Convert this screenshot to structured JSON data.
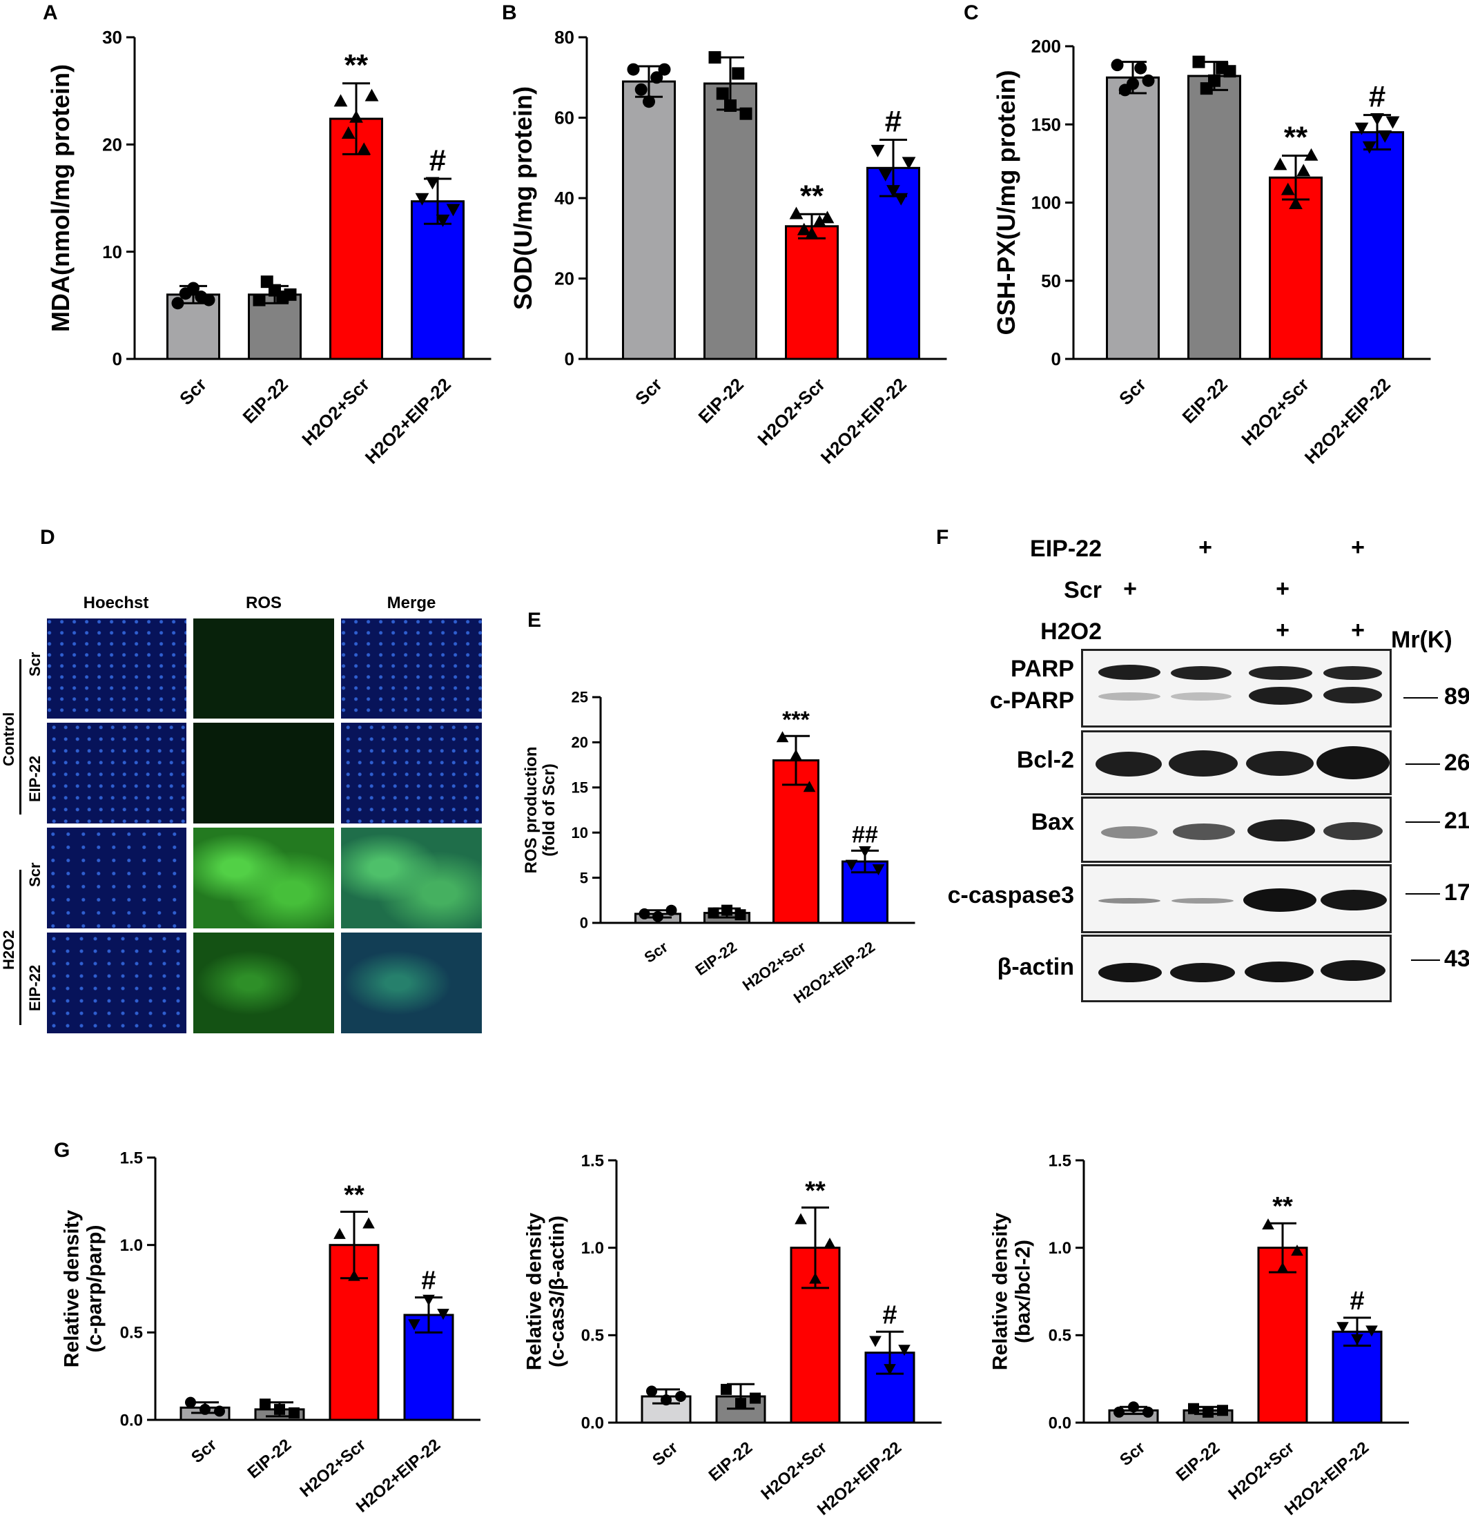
{
  "panels": {
    "A": "A",
    "B": "B",
    "C": "C",
    "D": "D",
    "E": "E",
    "F": "F",
    "G": "G"
  },
  "colors": {
    "scr": "#a6a6a8",
    "eip": "#828282",
    "h2o2_scr": "#ff0000",
    "h2o2_eip": "#0000ff",
    "scr_light_G": "#d6d6d8"
  },
  "chart_data": [
    {
      "id": "A",
      "type": "bar",
      "categories": [
        "Scr",
        "EIP-22",
        "H2O2+Scr",
        "H2O2+EIP-22"
      ],
      "values": [
        6.0,
        6.0,
        22.4,
        14.7
      ],
      "errors": [
        0.8,
        0.8,
        3.3,
        2.1
      ],
      "points": [
        [
          5.2,
          6.1,
          6.6,
          5.8,
          5.5
        ],
        [
          5.5,
          7.2,
          6.4,
          5.8,
          6.0
        ],
        [
          24.0,
          21.0,
          22.5,
          19.5,
          24.5
        ],
        [
          15.0,
          16.5,
          13.0,
          14.0
        ]
      ],
      "markers": [
        "circle",
        "square",
        "triangle-up",
        "triangle-down"
      ],
      "significance": [
        "",
        "",
        "**",
        "#"
      ],
      "ylabel": "MDA(nmol/mg protein)",
      "ylim": [
        0,
        30
      ],
      "yticks": [
        0,
        10,
        20,
        30
      ]
    },
    {
      "id": "B",
      "type": "bar",
      "categories": [
        "Scr",
        "EIP-22",
        "H2O2+Scr",
        "H2O2+EIP-22"
      ],
      "values": [
        69.0,
        68.5,
        33.0,
        47.5
      ],
      "errors": [
        3.8,
        6.5,
        3.0,
        7.0
      ],
      "points": [
        [
          72,
          67,
          64,
          70,
          72
        ],
        [
          75,
          66,
          63,
          71,
          61
        ],
        [
          36,
          32,
          31,
          34,
          35
        ],
        [
          52,
          46,
          42,
          40,
          49
        ]
      ],
      "markers": [
        "circle",
        "square",
        "triangle-up",
        "triangle-down"
      ],
      "significance": [
        "",
        "",
        "**",
        "#"
      ],
      "ylabel": "SOD(U/mg protein)",
      "ylim": [
        0,
        80
      ],
      "yticks": [
        0,
        20,
        40,
        60,
        80
      ]
    },
    {
      "id": "C",
      "type": "bar",
      "categories": [
        "Scr",
        "EIP-22",
        "H2O2+Scr",
        "H2O2+EIP-22"
      ],
      "values": [
        180,
        181,
        116,
        145
      ],
      "errors": [
        10,
        9,
        14,
        11
      ],
      "points": [
        [
          188,
          172,
          176,
          186,
          178
        ],
        [
          190,
          173,
          178,
          186,
          184
        ],
        [
          124,
          108,
          99,
          120,
          130
        ],
        [
          148,
          136,
          154,
          143,
          152
        ]
      ],
      "markers": [
        "circle",
        "square",
        "triangle-up",
        "triangle-down"
      ],
      "significance": [
        "",
        "",
        "**",
        "#"
      ],
      "ylabel": "GSH-PX(U/mg protein)",
      "ylim": [
        0,
        200
      ],
      "yticks": [
        0,
        50,
        100,
        150,
        200
      ]
    },
    {
      "id": "E",
      "type": "bar",
      "categories": [
        "Scr",
        "EIP-22",
        "H2O2+Scr",
        "H2O2+EIP-22"
      ],
      "values": [
        1.0,
        1.1,
        18.0,
        6.8
      ],
      "errors": [
        0.4,
        0.5,
        2.7,
        1.2
      ],
      "points": [
        [
          1.0,
          0.7,
          1.4
        ],
        [
          1.1,
          1.4,
          0.9
        ],
        [
          20.5,
          18.5,
          15.0
        ],
        [
          6.5,
          8.0,
          6.0
        ]
      ],
      "markers": [
        "circle",
        "square",
        "triangle-up",
        "triangle-down"
      ],
      "significance": [
        "",
        "",
        "***",
        "##"
      ],
      "ylabel": "ROS production\n(fold of Scr)",
      "ylim": [
        0,
        25
      ],
      "yticks": [
        0,
        5,
        10,
        15,
        20,
        25
      ]
    },
    {
      "id": "G1",
      "type": "bar",
      "categories": [
        "Scr",
        "EIP-22",
        "H2O2+Scr",
        "H2O2+EIP-22"
      ],
      "values": [
        0.07,
        0.06,
        1.0,
        0.6
      ],
      "errors": [
        0.03,
        0.04,
        0.19,
        0.1
      ],
      "points": [
        [
          0.1,
          0.06,
          0.05
        ],
        [
          0.09,
          0.06,
          0.04
        ],
        [
          1.06,
          0.82,
          1.12
        ],
        [
          0.55,
          0.69,
          0.61
        ]
      ],
      "markers": [
        "circle",
        "square",
        "triangle-up",
        "triangle-down"
      ],
      "significance": [
        "",
        "",
        "**",
        "#"
      ],
      "ylabel": "Relative density\n(c-parp/parp)",
      "ylim": [
        0,
        1.5
      ],
      "yticks": [
        0.0,
        0.5,
        1.0,
        1.5
      ]
    },
    {
      "id": "G2",
      "type": "bar",
      "categories": [
        "Scr",
        "EIP-22",
        "H2O2+Scr",
        "H2O2+EIP-22"
      ],
      "values": [
        0.15,
        0.15,
        1.0,
        0.4
      ],
      "errors": [
        0.04,
        0.07,
        0.23,
        0.12
      ],
      "points": [
        [
          0.18,
          0.13,
          0.15
        ],
        [
          0.19,
          0.11,
          0.14
        ],
        [
          1.16,
          0.82,
          1.02
        ],
        [
          0.47,
          0.31,
          0.42
        ]
      ],
      "markers": [
        "circle",
        "square",
        "triangle-up",
        "triangle-down"
      ],
      "significance": [
        "",
        "",
        "**",
        "#"
      ],
      "ylabel": "Relative density\n(c-cas3/β-actin)",
      "ylim": [
        0,
        1.5
      ],
      "yticks": [
        0.0,
        0.5,
        1.0,
        1.5
      ]
    },
    {
      "id": "G3",
      "type": "bar",
      "categories": [
        "Scr",
        "EIP-22",
        "H2O2+Scr",
        "H2O2+EIP-22"
      ],
      "values": [
        0.07,
        0.07,
        1.0,
        0.52
      ],
      "errors": [
        0.02,
        0.02,
        0.14,
        0.08
      ],
      "points": [
        [
          0.06,
          0.09,
          0.06
        ],
        [
          0.08,
          0.06,
          0.07
        ],
        [
          1.13,
          0.88,
          0.98
        ],
        [
          0.55,
          0.48,
          0.53
        ]
      ],
      "markers": [
        "circle",
        "square",
        "triangle-up",
        "triangle-down"
      ],
      "significance": [
        "",
        "",
        "**",
        "#"
      ],
      "ylabel": "Relative density\n(bax/bcl-2)",
      "ylim": [
        0,
        1.5
      ],
      "yticks": [
        0.0,
        0.5,
        1.0,
        1.5
      ]
    }
  ],
  "fluorescence": {
    "columns": [
      "Hoechst",
      "ROS",
      "Merge"
    ],
    "rows": [
      "Scr",
      "EIP-22",
      "Scr",
      "EIP-22"
    ],
    "groups": [
      "Control",
      "H2O2"
    ]
  },
  "western_blot": {
    "conditions": [
      {
        "label": "EIP-22",
        "lanes": [
          "",
          "+",
          "",
          "+"
        ]
      },
      {
        "label": "Scr",
        "lanes": [
          "+",
          "",
          "+",
          ""
        ]
      },
      {
        "label": "H2O2",
        "lanes": [
          "",
          "",
          "+",
          "+"
        ]
      }
    ],
    "mw_header": "Mr(K)",
    "blots": [
      {
        "labels": [
          "PARP",
          "c-PARP"
        ],
        "mw": "89"
      },
      {
        "labels": [
          "Bcl-2"
        ],
        "mw": "26"
      },
      {
        "labels": [
          "Bax"
        ],
        "mw": "21"
      },
      {
        "labels": [
          "c-caspase3"
        ],
        "mw": "17"
      },
      {
        "labels": [
          "β-actin"
        ],
        "mw": "43"
      }
    ]
  }
}
